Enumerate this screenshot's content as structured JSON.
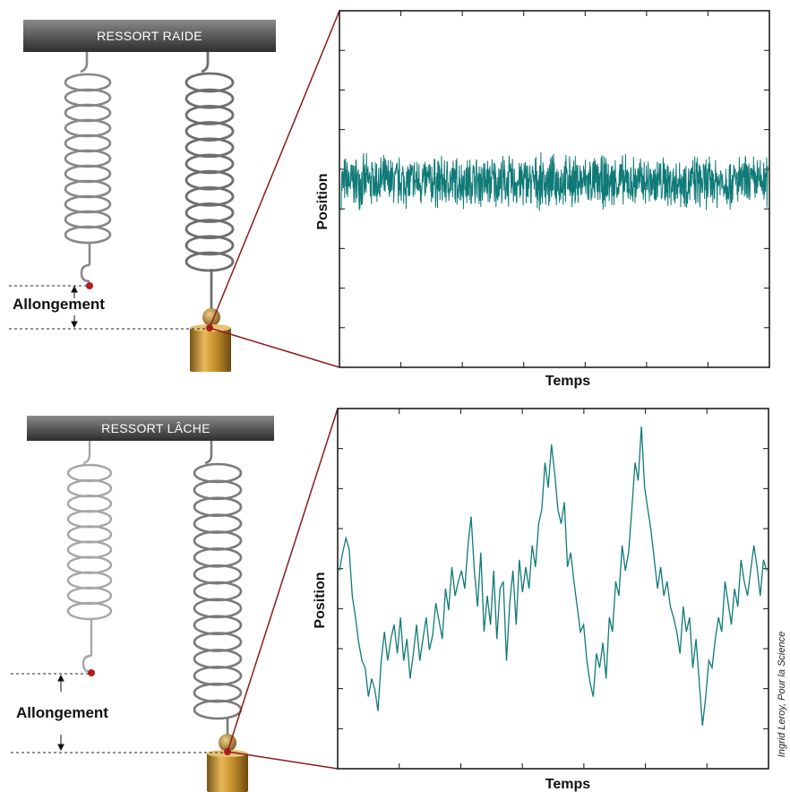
{
  "top_panel": {
    "bar_label": "RESSORT RAIDE",
    "measure_label": "Allongement"
  },
  "bottom_panel": {
    "bar_label": "RESSORT LÂCHE",
    "measure_label": "Allongement"
  },
  "credit": "Ingrid Leroy, Pour la Science",
  "colors": {
    "trace": "#0f7a78",
    "connector": "#8b1a1a",
    "marker": "#b01e1e",
    "weight": "#c89a3c",
    "bar": "#555555"
  },
  "chart_data": [
    {
      "type": "line",
      "xlabel": "Temps",
      "ylabel": "Position",
      "y_ticks": 8,
      "x_ticks": 6,
      "n_points": 1400,
      "ylim": [
        0,
        1
      ],
      "baseline": 0.52,
      "noise_amplitude": 0.07
    },
    {
      "type": "line",
      "xlabel": "Temps",
      "ylabel": "Position",
      "y_ticks": 8,
      "x_ticks": 6,
      "ylim": [
        0,
        1
      ],
      "y": [
        0.55,
        0.6,
        0.64,
        0.61,
        0.48,
        0.42,
        0.35,
        0.3,
        0.28,
        0.2,
        0.25,
        0.22,
        0.16,
        0.3,
        0.38,
        0.3,
        0.36,
        0.4,
        0.32,
        0.42,
        0.3,
        0.36,
        0.25,
        0.32,
        0.4,
        0.3,
        0.36,
        0.42,
        0.33,
        0.37,
        0.46,
        0.41,
        0.36,
        0.5,
        0.44,
        0.56,
        0.48,
        0.52,
        0.55,
        0.5,
        0.62,
        0.7,
        0.55,
        0.45,
        0.6,
        0.38,
        0.48,
        0.4,
        0.55,
        0.36,
        0.5,
        0.52,
        0.3,
        0.46,
        0.55,
        0.4,
        0.58,
        0.49,
        0.56,
        0.5,
        0.62,
        0.56,
        0.68,
        0.72,
        0.85,
        0.78,
        0.9,
        0.82,
        0.72,
        0.68,
        0.74,
        0.56,
        0.6,
        0.52,
        0.45,
        0.38,
        0.4,
        0.3,
        0.24,
        0.2,
        0.32,
        0.28,
        0.35,
        0.25,
        0.42,
        0.38,
        0.52,
        0.48,
        0.62,
        0.55,
        0.6,
        0.72,
        0.85,
        0.8,
        0.95,
        0.78,
        0.72,
        0.66,
        0.58,
        0.5,
        0.56,
        0.48,
        0.52,
        0.45,
        0.42,
        0.38,
        0.32,
        0.45,
        0.38,
        0.42,
        0.28,
        0.36,
        0.24,
        0.12,
        0.2,
        0.3,
        0.28,
        0.36,
        0.42,
        0.38,
        0.52,
        0.46,
        0.4,
        0.5,
        0.45,
        0.58,
        0.52,
        0.48,
        0.55,
        0.62,
        0.56,
        0.48,
        0.58,
        0.55
      ]
    }
  ]
}
